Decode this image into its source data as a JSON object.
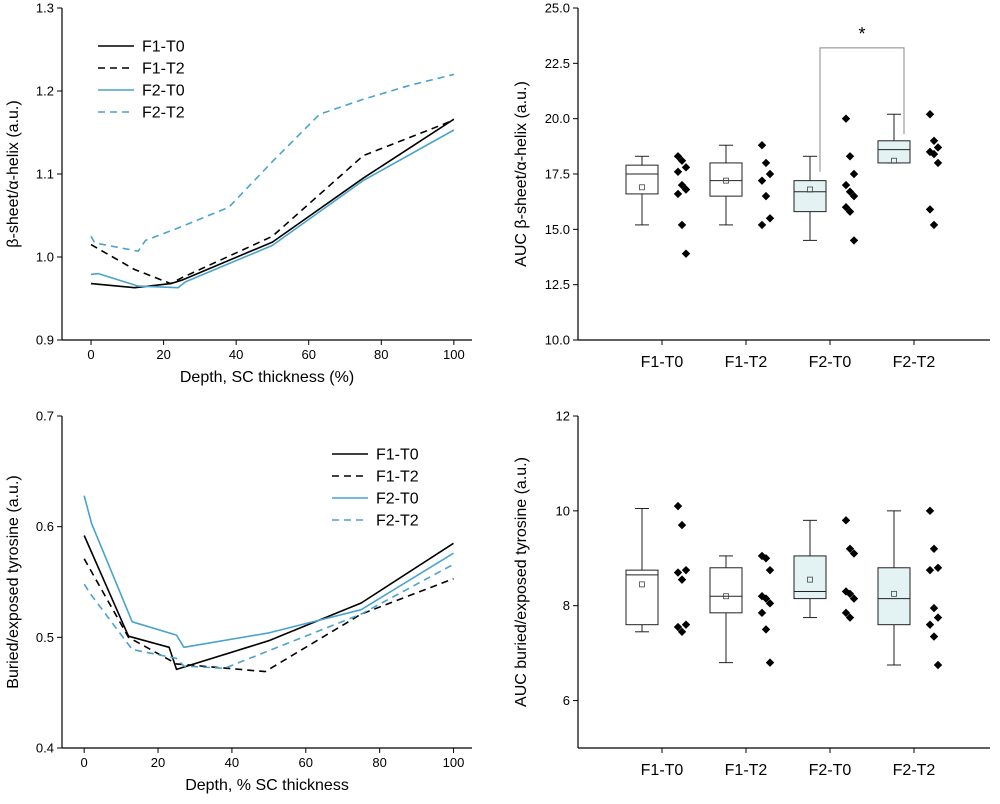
{
  "colors": {
    "f1": "#000000",
    "f2": "#4aa3cc",
    "box_f2_fill": "#e3f3f4",
    "bracket": "#888888",
    "axis": "#000000"
  },
  "chart_data": [
    {
      "id": "a",
      "type": "line",
      "xlabel": "Depth, SC thickness (%)",
      "ylabel": "β-sheet/α-helix (a.u.)",
      "xlim": [
        -8,
        105
      ],
      "ylim": [
        0.9,
        1.3
      ],
      "xticks": [
        0,
        20,
        40,
        60,
        80,
        100
      ],
      "yticks": [
        0.9,
        1.0,
        1.1,
        1.2,
        1.3
      ],
      "ytick_decimals": 1,
      "legend_position": "top-left",
      "series": [
        {
          "name": "F1-T0",
          "color": "#000000",
          "dashed": false,
          "x": [
            0,
            12,
            22,
            25,
            50,
            75,
            100
          ],
          "y": [
            0.968,
            0.963,
            0.968,
            0.972,
            1.018,
            1.095,
            1.166
          ]
        },
        {
          "name": "F1-T2",
          "color": "#000000",
          "dashed": true,
          "x": [
            0,
            12,
            22,
            25,
            50,
            75,
            100
          ],
          "y": [
            1.015,
            0.985,
            0.968,
            0.975,
            1.025,
            1.122,
            1.165
          ]
        },
        {
          "name": "F2-T0",
          "color": "#4aa3cc",
          "dashed": false,
          "x": [
            0,
            2,
            13,
            24,
            26,
            50,
            75,
            100
          ],
          "y": [
            0.979,
            0.98,
            0.965,
            0.963,
            0.97,
            1.014,
            1.092,
            1.153
          ]
        },
        {
          "name": "F2-T2",
          "color": "#4aa3cc",
          "dashed": true,
          "x": [
            0,
            1,
            13,
            15,
            24,
            38,
            50,
            63,
            75,
            88,
            100
          ],
          "y": [
            1.025,
            1.017,
            1.007,
            1.02,
            1.035,
            1.06,
            1.115,
            1.172,
            1.19,
            1.207,
            1.22
          ]
        }
      ]
    },
    {
      "id": "b",
      "type": "box",
      "xlabel": "",
      "ylabel": "AUC β-sheet/α-helix (a.u.)",
      "ylim": [
        10.0,
        25.0
      ],
      "yticks": [
        10.0,
        12.5,
        15.0,
        17.5,
        20.0,
        22.5,
        25.0
      ],
      "ytick_decimals": 1,
      "categories": [
        "F1-T0",
        "F1-T2",
        "F2-T0",
        "F2-T2"
      ],
      "boxes": [
        {
          "min": 15.2,
          "q1": 16.6,
          "median": 17.5,
          "q3": 17.9,
          "max": 18.3,
          "mean": 16.9,
          "filled": false,
          "points": [
            18.3,
            18.1,
            17.8,
            17.6,
            17.0,
            16.8,
            16.6,
            15.2,
            13.9
          ]
        },
        {
          "min": 15.2,
          "q1": 16.5,
          "median": 17.2,
          "q3": 18.0,
          "max": 18.8,
          "mean": 17.2,
          "filled": false,
          "points": [
            18.8,
            18.0,
            17.5,
            17.2,
            16.5,
            15.5,
            15.2
          ]
        },
        {
          "min": 14.5,
          "q1": 15.8,
          "median": 16.7,
          "q3": 17.2,
          "max": 18.3,
          "mean": 16.8,
          "filled": true,
          "points": [
            20.0,
            18.3,
            17.5,
            17.0,
            16.7,
            16.5,
            16.0,
            15.8,
            14.5
          ]
        },
        {
          "min": 18.0,
          "q1": 18.0,
          "median": 18.6,
          "q3": 19.0,
          "max": 20.2,
          "mean": 18.1,
          "filled": true,
          "points": [
            20.2,
            19.0,
            18.7,
            18.5,
            18.4,
            18.0,
            15.9,
            15.2
          ]
        }
      ],
      "significance": {
        "from": 2,
        "to": 3,
        "y": 23.2,
        "label": "*"
      }
    },
    {
      "id": "c",
      "type": "line",
      "xlabel": "Depth, % SC thickness",
      "ylabel": "Buried/exposed tyrosine (a.u.)",
      "xlim": [
        -6,
        105
      ],
      "ylim": [
        0.4,
        0.7
      ],
      "xticks": [
        0,
        20,
        40,
        60,
        80,
        100
      ],
      "yticks": [
        0.4,
        0.5,
        0.6,
        0.7
      ],
      "ytick_decimals": 1,
      "legend_position": "top-right",
      "series": [
        {
          "name": "F1-T0",
          "color": "#000000",
          "dashed": false,
          "x": [
            0,
            12,
            23,
            25,
            50,
            75,
            100
          ],
          "y": [
            0.592,
            0.501,
            0.491,
            0.471,
            0.497,
            0.531,
            0.585
          ]
        },
        {
          "name": "F1-T2",
          "color": "#000000",
          "dashed": true,
          "x": [
            0,
            12,
            25,
            49,
            75,
            100
          ],
          "y": [
            0.571,
            0.5,
            0.476,
            0.469,
            0.521,
            0.553
          ]
        },
        {
          "name": "F2-T0",
          "color": "#4aa3cc",
          "dashed": false,
          "x": [
            0,
            2,
            13,
            25,
            27,
            50,
            75,
            100
          ],
          "y": [
            0.628,
            0.603,
            0.514,
            0.502,
            0.491,
            0.504,
            0.525,
            0.576
          ]
        },
        {
          "name": "F2-T2",
          "color": "#4aa3cc",
          "dashed": true,
          "x": [
            0,
            2,
            13,
            25,
            27,
            38,
            75,
            100
          ],
          "y": [
            0.548,
            0.538,
            0.489,
            0.481,
            0.474,
            0.472,
            0.521,
            0.566
          ]
        }
      ]
    },
    {
      "id": "d",
      "type": "box",
      "xlabel": "",
      "ylabel": "AUC buried/exposed tyrosine (a.u.)",
      "ylim": [
        5.0,
        12.0
      ],
      "yticks": [
        6,
        8,
        10,
        12
      ],
      "ytick_decimals": 0,
      "categories": [
        "F1-T0",
        "F1-T2",
        "F2-T0",
        "F2-T2"
      ],
      "boxes": [
        {
          "min": 7.45,
          "q1": 7.6,
          "median": 8.65,
          "q3": 8.75,
          "max": 10.05,
          "mean": 8.45,
          "filled": false,
          "points": [
            10.1,
            9.7,
            8.75,
            8.7,
            8.55,
            7.6,
            7.55,
            7.45
          ]
        },
        {
          "min": 6.8,
          "q1": 7.85,
          "median": 8.2,
          "q3": 8.8,
          "max": 9.05,
          "mean": 8.2,
          "filled": false,
          "points": [
            9.05,
            9.0,
            8.75,
            8.2,
            8.15,
            8.05,
            7.85,
            7.5,
            6.8
          ]
        },
        {
          "min": 7.75,
          "q1": 8.15,
          "median": 8.3,
          "q3": 9.05,
          "max": 9.8,
          "mean": 8.55,
          "filled": true,
          "points": [
            9.8,
            9.2,
            9.1,
            8.3,
            8.25,
            8.15,
            7.85,
            7.75
          ]
        },
        {
          "min": 6.75,
          "q1": 7.6,
          "median": 8.15,
          "q3": 8.8,
          "max": 10.0,
          "mean": 8.25,
          "filled": true,
          "points": [
            10.0,
            9.2,
            8.8,
            8.75,
            7.95,
            7.75,
            7.6,
            7.35,
            6.75
          ]
        }
      ]
    }
  ]
}
